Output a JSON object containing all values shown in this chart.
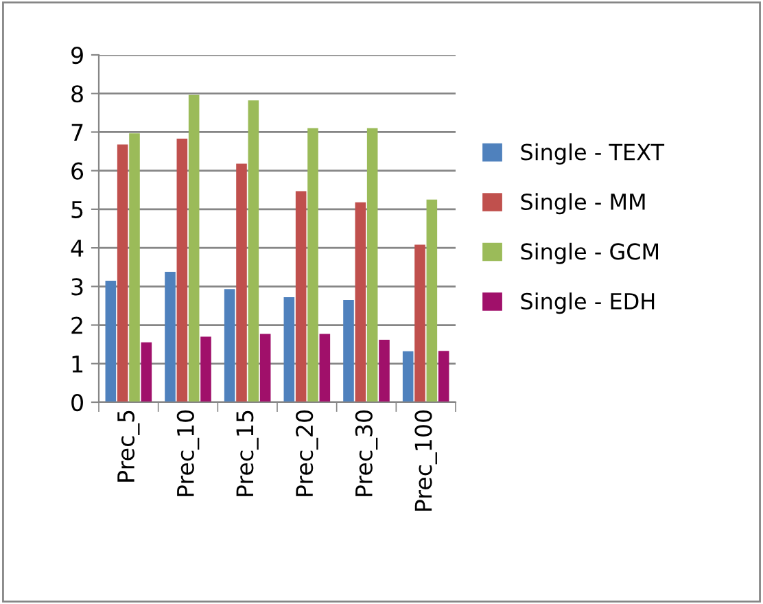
{
  "chart_data": {
    "type": "bar",
    "categories": [
      "Prec_5",
      "Prec_10",
      "Prec_15",
      "Prec_20",
      "Prec_30",
      "Prec_100"
    ],
    "series": [
      {
        "name": "Single - TEXT",
        "color": "#4f81bd",
        "values": [
          3.15,
          3.38,
          2.93,
          2.72,
          2.65,
          1.32
        ]
      },
      {
        "name": "Single - MM",
        "color": "#c0504d",
        "values": [
          6.68,
          6.83,
          6.18,
          5.47,
          5.18,
          4.08
        ]
      },
      {
        "name": "Single - GCM",
        "color": "#9bbb59",
        "values": [
          6.97,
          7.97,
          7.82,
          7.1,
          7.1,
          5.25
        ]
      },
      {
        "name": "Single - EDH",
        "color": "#a0106a",
        "values": [
          1.55,
          1.7,
          1.77,
          1.77,
          1.62,
          1.33
        ]
      }
    ],
    "ylim": [
      0,
      9
    ],
    "yticks": [
      0,
      1,
      2,
      3,
      4,
      5,
      6,
      7,
      8,
      9
    ],
    "grid": "y",
    "legend": "right"
  }
}
